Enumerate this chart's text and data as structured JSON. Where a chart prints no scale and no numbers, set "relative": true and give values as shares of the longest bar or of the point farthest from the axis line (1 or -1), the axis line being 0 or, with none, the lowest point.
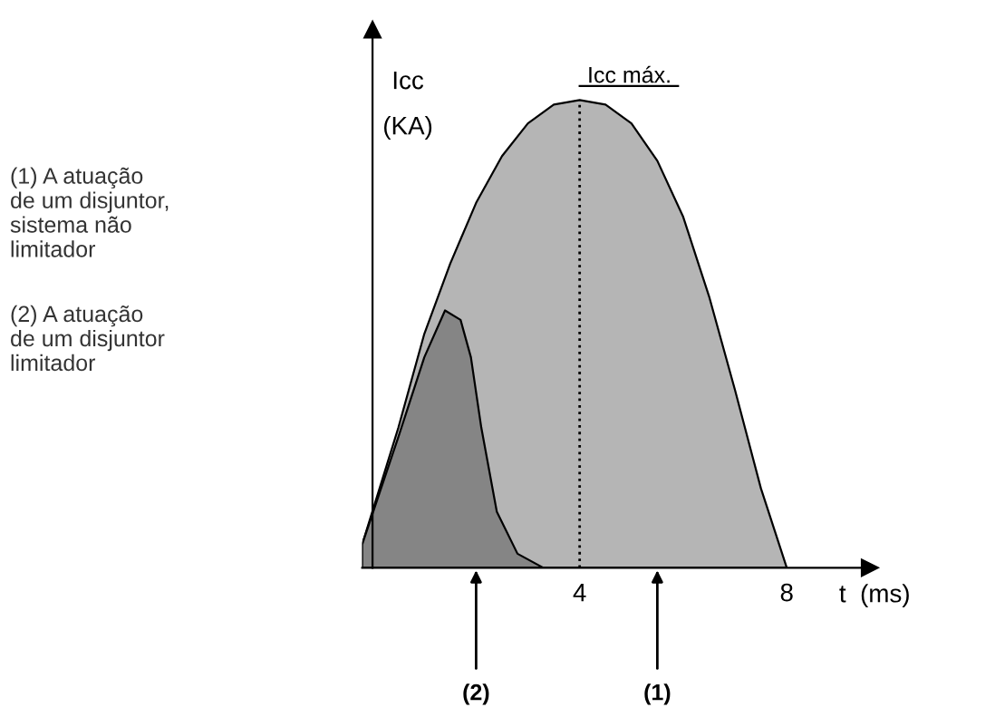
{
  "chart_data": {
    "type": "area",
    "relative": true,
    "xlabel": "t  (ms)",
    "ylabel": "Icc\n(KA)",
    "xlim": [
      -0.2,
      9.6
    ],
    "xticks": [
      4,
      8
    ],
    "grid": false,
    "series": [
      {
        "color": "#b5b5b5",
        "x": [
          -0.2,
          -0.2,
          0.5,
          1,
          1.5,
          2,
          2.5,
          3,
          3.5,
          4,
          4.5,
          5,
          5.5,
          6,
          6.5,
          7,
          7.5,
          8
        ],
        "values": [
          0,
          0.05,
          0.3,
          0.5,
          0.65,
          0.78,
          0.88,
          0.95,
          0.99,
          1,
          0.99,
          0.95,
          0.87,
          0.75,
          0.58,
          0.38,
          0.17,
          0
        ]
      },
      {
        "color": "#858585",
        "x": [
          -0.2,
          -0.2,
          0.5,
          1,
          1.4,
          1.7,
          1.9,
          2.1,
          2.4,
          2.8,
          3.3
        ],
        "values": [
          0,
          0.05,
          0.28,
          0.45,
          0.55,
          0.53,
          0.45,
          0.3,
          0.12,
          0.03,
          0
        ]
      }
    ],
    "ref_lines": [
      {
        "axis": "x",
        "value": 4,
        "label": "Icc máx.",
        "line_style": "dotted"
      }
    ],
    "annotations": [
      "(1) A atuação\nde um disjuntor,\nsistema não\nlimitador",
      "(2) A atuação\nde um disjuntor\nlimitador",
      {
        "text": "(2)",
        "x": 2,
        "y": 0
      },
      {
        "text": "(1)",
        "x": 5.5,
        "y": 0
      }
    ]
  }
}
